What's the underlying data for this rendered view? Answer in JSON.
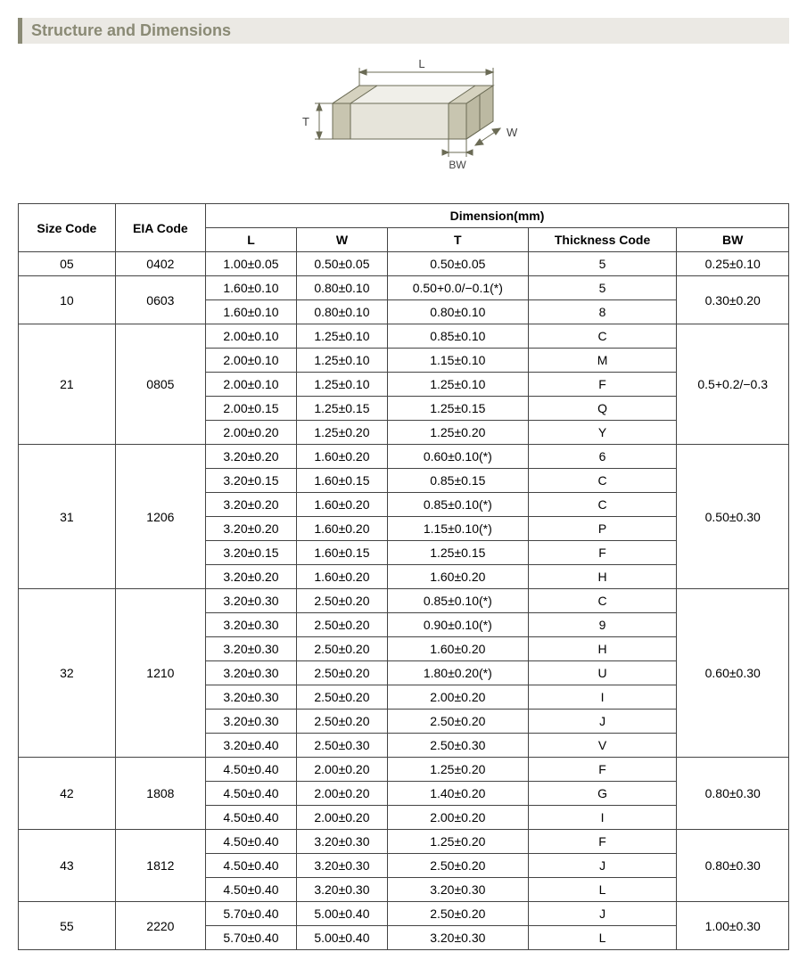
{
  "title": "Structure and Dimensions",
  "diagram": {
    "labels": {
      "L": "L",
      "W": "W",
      "T": "T",
      "BW": "BW"
    },
    "stroke": "#6b6b55",
    "fill_top": "#f7f6f2",
    "fill_side": "#d8d6cc",
    "fill_front": "#e6e4da",
    "fill_term": "#b8b59e"
  },
  "table": {
    "headers": {
      "size": "Size Code",
      "eia": "EIA Code",
      "dim": "Dimension(mm)",
      "L": "L",
      "W": "W",
      "T": "T",
      "thick": "Thickness  Code",
      "BW": "BW"
    },
    "groups": [
      {
        "size": "05",
        "eia": "0402",
        "bw": "0.25±0.10",
        "rows": [
          {
            "L": "1.00±0.05",
            "W": "0.50±0.05",
            "T": "0.50±0.05",
            "tc": "5"
          }
        ]
      },
      {
        "size": "10",
        "eia": "0603",
        "bw": "0.30±0.20",
        "rows": [
          {
            "L": "1.60±0.10",
            "W": "0.80±0.10",
            "T": "0.50+0.0/−0.1(*)",
            "tc": "5"
          },
          {
            "L": "1.60±0.10",
            "W": "0.80±0.10",
            "T": "0.80±0.10",
            "tc": "8"
          }
        ]
      },
      {
        "size": "21",
        "eia": "0805",
        "bw": "0.5+0.2/−0.3",
        "rows": [
          {
            "L": "2.00±0.10",
            "W": "1.25±0.10",
            "T": "0.85±0.10",
            "tc": "C"
          },
          {
            "L": "2.00±0.10",
            "W": "1.25±0.10",
            "T": "1.15±0.10",
            "tc": "M"
          },
          {
            "L": "2.00±0.10",
            "W": "1.25±0.10",
            "T": "1.25±0.10",
            "tc": "F"
          },
          {
            "L": "2.00±0.15",
            "W": "1.25±0.15",
            "T": "1.25±0.15",
            "tc": "Q"
          },
          {
            "L": "2.00±0.20",
            "W": "1.25±0.20",
            "T": "1.25±0.20",
            "tc": "Y"
          }
        ]
      },
      {
        "size": "31",
        "eia": "1206",
        "bw": "0.50±0.30",
        "rows": [
          {
            "L": "3.20±0.20",
            "W": "1.60±0.20",
            "T": "0.60±0.10(*)",
            "tc": "6"
          },
          {
            "L": "3.20±0.15",
            "W": "1.60±0.15",
            "T": "0.85±0.15",
            "tc": "C"
          },
          {
            "L": "3.20±0.20",
            "W": "1.60±0.20",
            "T": "0.85±0.10(*)",
            "tc": "C"
          },
          {
            "L": "3.20±0.20",
            "W": "1.60±0.20",
            "T": "1.15±0.10(*)",
            "tc": "P"
          },
          {
            "L": "3.20±0.15",
            "W": "1.60±0.15",
            "T": "1.25±0.15",
            "tc": "F"
          },
          {
            "L": "3.20±0.20",
            "W": "1.60±0.20",
            "T": "1.60±0.20",
            "tc": "H"
          }
        ]
      },
      {
        "size": "32",
        "eia": "1210",
        "bw": "0.60±0.30",
        "rows": [
          {
            "L": "3.20±0.30",
            "W": "2.50±0.20",
            "T": "0.85±0.10(*)",
            "tc": "C"
          },
          {
            "L": "3.20±0.30",
            "W": "2.50±0.20",
            "T": "0.90±0.10(*)",
            "tc": "9"
          },
          {
            "L": "3.20±0.30",
            "W": "2.50±0.20",
            "T": "1.60±0.20",
            "tc": "H"
          },
          {
            "L": "3.20±0.30",
            "W": "2.50±0.20",
            "T": "1.80±0.20(*)",
            "tc": "U"
          },
          {
            "L": "3.20±0.30",
            "W": "2.50±0.20",
            "T": "2.00±0.20",
            "tc": "I"
          },
          {
            "L": "3.20±0.30",
            "W": "2.50±0.20",
            "T": "2.50±0.20",
            "tc": "J"
          },
          {
            "L": "3.20±0.40",
            "W": "2.50±0.30",
            "T": "2.50±0.30",
            "tc": "V"
          }
        ]
      },
      {
        "size": "42",
        "eia": "1808",
        "bw": "0.80±0.30",
        "rows": [
          {
            "L": "4.50±0.40",
            "W": "2.00±0.20",
            "T": "1.25±0.20",
            "tc": "F"
          },
          {
            "L": "4.50±0.40",
            "W": "2.00±0.20",
            "T": "1.40±0.20",
            "tc": "G"
          },
          {
            "L": "4.50±0.40",
            "W": "2.00±0.20",
            "T": "2.00±0.20",
            "tc": "I"
          }
        ]
      },
      {
        "size": "43",
        "eia": "1812",
        "bw": "0.80±0.30",
        "rows": [
          {
            "L": "4.50±0.40",
            "W": "3.20±0.30",
            "T": "1.25±0.20",
            "tc": "F"
          },
          {
            "L": "4.50±0.40",
            "W": "3.20±0.30",
            "T": "2.50±0.20",
            "tc": "J"
          },
          {
            "L": "4.50±0.40",
            "W": "3.20±0.30",
            "T": "3.20±0.30",
            "tc": "L"
          }
        ]
      },
      {
        "size": "55",
        "eia": "2220",
        "bw": "1.00±0.30",
        "rows": [
          {
            "L": "5.70±0.40",
            "W": "5.00±0.40",
            "T": "2.50±0.20",
            "tc": "J"
          },
          {
            "L": "5.70±0.40",
            "W": "5.00±0.40",
            "T": "3.20±0.30",
            "tc": "L"
          }
        ]
      }
    ]
  }
}
